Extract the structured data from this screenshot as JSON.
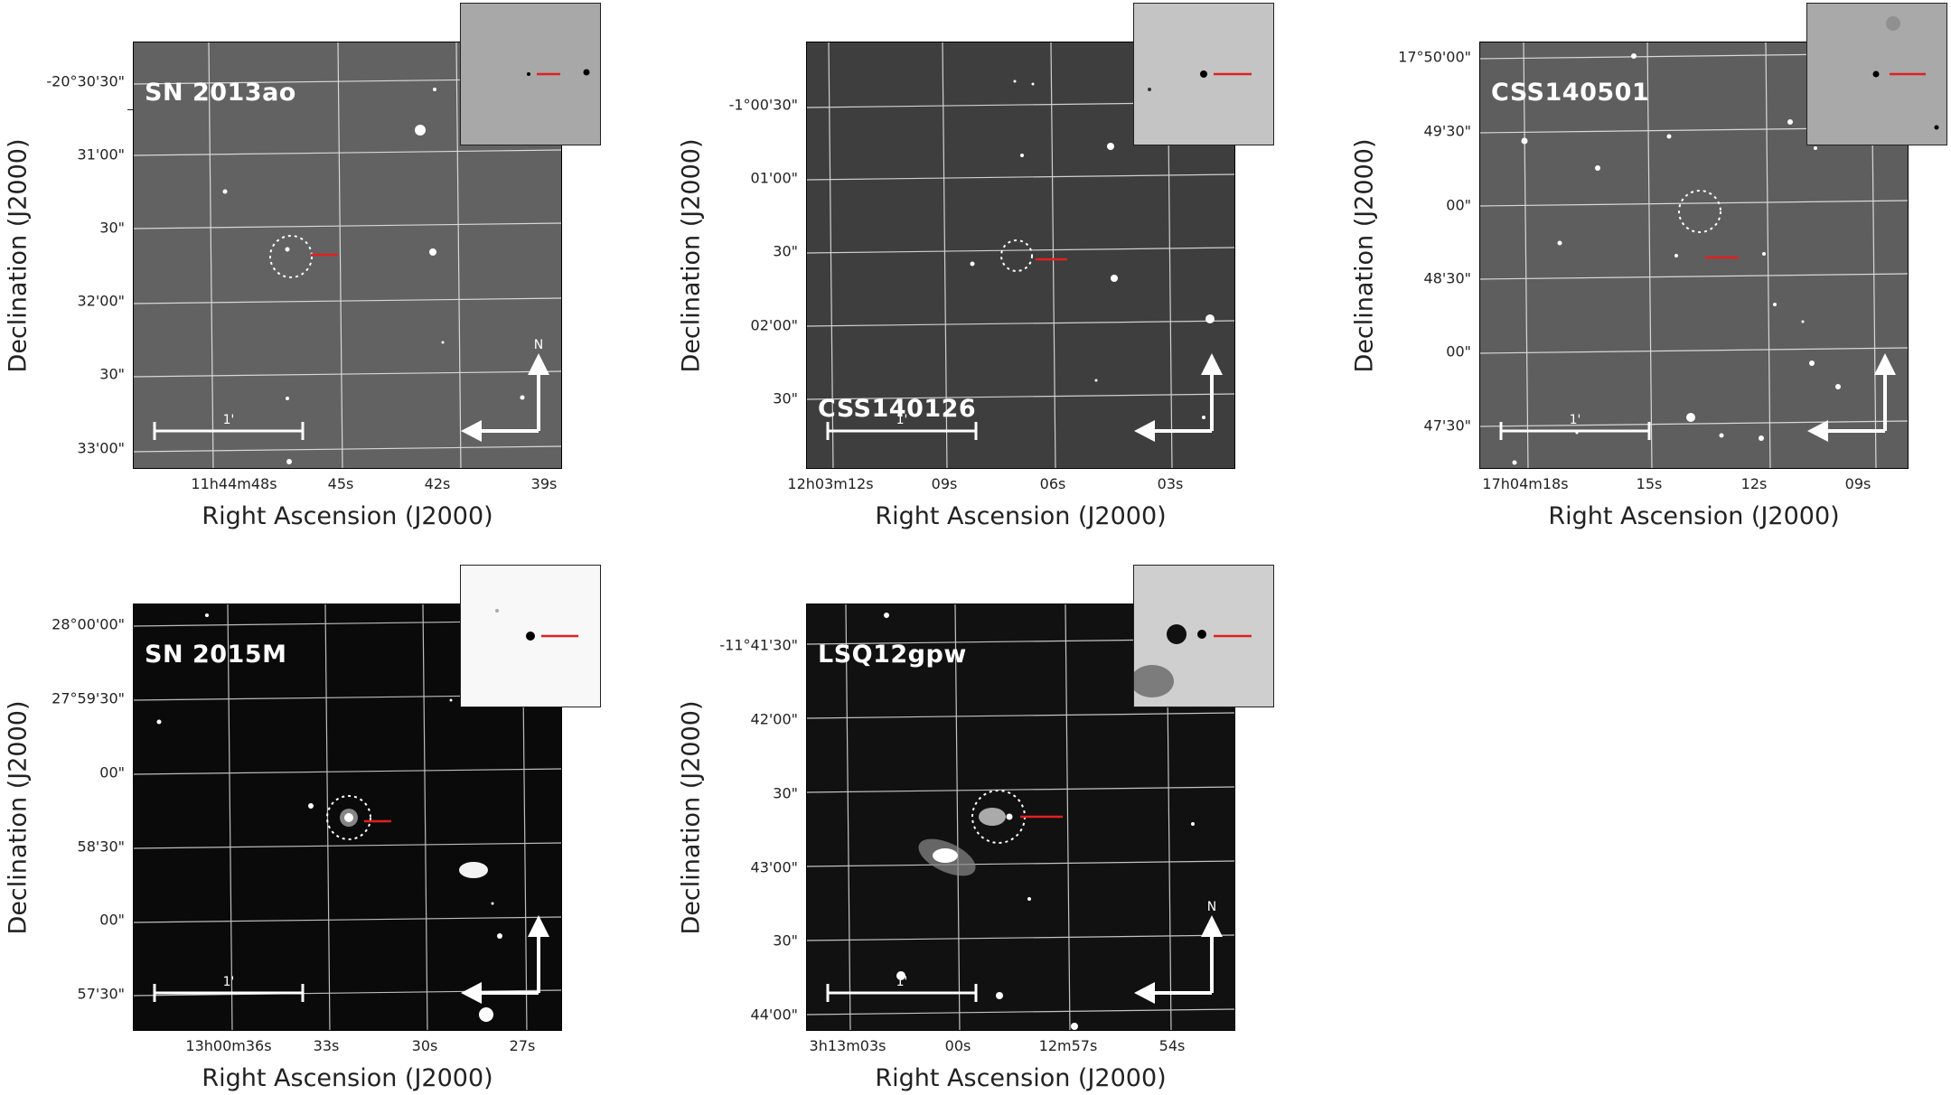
{
  "axis_labels": {
    "x": "Right Ascension (J2000)",
    "y": "Declination (J2000)"
  },
  "scale_bar_label": "1'",
  "north_label": "N",
  "colors": {
    "marker_red": "#e02020",
    "circle": "#ffffff",
    "grid": "#d8d8d8"
  },
  "panels": [
    {
      "name": "SN 2013ao",
      "background": "gray",
      "show_north": true,
      "yticks": [
        "-20°30'30\"",
        "31'00\"",
        "30\"",
        "32'00\"",
        "30\"",
        "33'00\""
      ],
      "xticks": [
        "11h44m48s",
        "45s",
        "42s",
        "39s"
      ]
    },
    {
      "name": "CSS140126",
      "background": "dark-gray",
      "show_north": false,
      "yticks": [
        "-1°00'30\"",
        "01'00\"",
        "30\"",
        "02'00\"",
        "30\""
      ],
      "xticks": [
        "12h03m12s",
        "09s",
        "06s",
        "03s"
      ]
    },
    {
      "name": "CSS140501",
      "background": "gray",
      "show_north": false,
      "yticks": [
        "17°50'00\"",
        "49'30\"",
        "00\"",
        "48'30\"",
        "00\"",
        "47'30\""
      ],
      "xticks": [
        "17h04m18s",
        "15s",
        "12s",
        "09s"
      ]
    },
    {
      "name": "SN 2015M",
      "background": "black",
      "show_north": false,
      "yticks": [
        "28°00'00\"",
        "27°59'30\"",
        "00\"",
        "58'30\"",
        "00\"",
        "57'30\""
      ],
      "xticks": [
        "13h00m36s",
        "33s",
        "30s",
        "27s"
      ]
    },
    {
      "name": "LSQ12gpw",
      "background": "black",
      "show_north": true,
      "yticks": [
        "-11°41'30\"",
        "42'00\"",
        "30\"",
        "43'00\"",
        "30\"",
        "44'00\""
      ],
      "xticks": [
        "3h13m03s",
        "00s",
        "12m57s",
        "54s"
      ]
    }
  ]
}
